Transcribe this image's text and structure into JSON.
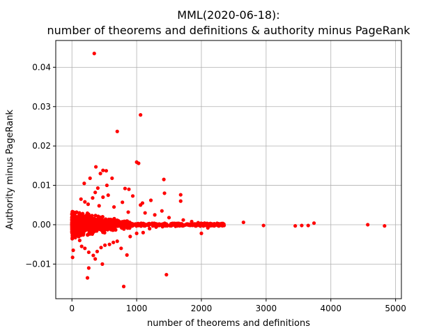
{
  "chart_data": {
    "type": "scatter",
    "title_lines": [
      "MML(2020-06-18):",
      "number of theorems and definitions & authority minus PageRank"
    ],
    "xlabel": "number of theorems and definitions",
    "ylabel": "Authority minus PageRank",
    "xlim": [
      -250,
      5090
    ],
    "ylim": [
      -0.0188,
      0.0468
    ],
    "xticks": [
      0,
      1000,
      2000,
      3000,
      4000,
      5000
    ],
    "xtick_labels": [
      "0",
      "1000",
      "2000",
      "3000",
      "4000",
      "5000"
    ],
    "yticks": [
      -0.01,
      0.0,
      0.01,
      0.02,
      0.03,
      0.04
    ],
    "ytick_labels": [
      "−0.01",
      "0.00",
      "0.01",
      "0.02",
      "0.03",
      "0.04"
    ],
    "grid": true,
    "marker_color": "#ff0000",
    "points": [
      [
        345,
        0.0435
      ],
      [
        1060,
        0.0279
      ],
      [
        700,
        0.0237
      ],
      [
        1000,
        0.0159
      ],
      [
        1030,
        0.0156
      ],
      [
        370,
        0.0147
      ],
      [
        480,
        0.0138
      ],
      [
        530,
        0.0137
      ],
      [
        440,
        0.013
      ],
      [
        280,
        0.0118
      ],
      [
        620,
        0.0118
      ],
      [
        1420,
        0.0115
      ],
      [
        190,
        0.0105
      ],
      [
        540,
        0.01
      ],
      [
        400,
        0.0093
      ],
      [
        820,
        0.0092
      ],
      [
        880,
        0.009
      ],
      [
        360,
        0.0082
      ],
      [
        1430,
        0.008
      ],
      [
        1680,
        0.0076
      ],
      [
        560,
        0.0075
      ],
      [
        140,
        0.0065
      ],
      [
        320,
        0.0068
      ],
      [
        480,
        0.007
      ],
      [
        940,
        0.0073
      ],
      [
        1220,
        0.0062
      ],
      [
        1680,
        0.006
      ],
      [
        780,
        0.0057
      ],
      [
        1090,
        0.0055
      ],
      [
        1060,
        0.005
      ],
      [
        200,
        0.0058
      ],
      [
        250,
        0.0052
      ],
      [
        420,
        0.0048
      ],
      [
        650,
        0.0045
      ],
      [
        1390,
        0.0035
      ],
      [
        870,
        0.0032
      ],
      [
        1130,
        0.003
      ],
      [
        1280,
        0.0025
      ],
      [
        1500,
        0.0018
      ],
      [
        1720,
        0.0012
      ],
      [
        1850,
        0.0008
      ],
      [
        1950,
        0.0005
      ],
      [
        2050,
        0.0004
      ],
      [
        2150,
        0.0002
      ],
      [
        2250,
        0.0001
      ],
      [
        2650,
        0.0006
      ],
      [
        2960,
        -0.0002
      ],
      [
        3450,
        -0.0003
      ],
      [
        3550,
        -0.0002
      ],
      [
        3650,
        -0.0002
      ],
      [
        3740,
        0.0004
      ],
      [
        4570,
        0.0
      ],
      [
        4830,
        -0.0003
      ],
      [
        2000,
        -0.0022
      ],
      [
        2100,
        -0.0008
      ],
      [
        2200,
        -0.0003
      ],
      [
        2350,
        -0.0002
      ],
      [
        120,
        -0.004
      ],
      [
        150,
        -0.0055
      ],
      [
        200,
        -0.006
      ],
      [
        260,
        -0.007
      ],
      [
        330,
        -0.0078
      ],
      [
        390,
        -0.0068
      ],
      [
        450,
        -0.0058
      ],
      [
        510,
        -0.0052
      ],
      [
        580,
        -0.005
      ],
      [
        640,
        -0.0045
      ],
      [
        700,
        -0.0042
      ],
      [
        760,
        -0.006
      ],
      [
        850,
        -0.0077
      ],
      [
        20,
        -0.0065
      ],
      [
        10,
        -0.0083
      ],
      [
        260,
        -0.011
      ],
      [
        360,
        -0.0087
      ],
      [
        470,
        -0.01
      ],
      [
        240,
        -0.0135
      ],
      [
        800,
        -0.0157
      ],
      [
        1460,
        -0.0127
      ],
      [
        900,
        -0.003
      ],
      [
        1000,
        -0.0022
      ],
      [
        1100,
        -0.002
      ],
      [
        1200,
        -0.001
      ],
      [
        1300,
        -0.0006
      ],
      [
        1400,
        -0.0005
      ],
      [
        1600,
        -0.0004
      ]
    ]
  }
}
